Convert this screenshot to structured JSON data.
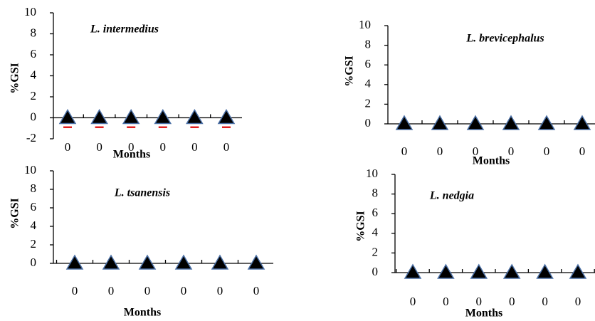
{
  "chart_data": [
    {
      "type": "line",
      "title": "L. intermedius",
      "ylabel": "%GSI",
      "xlabel": "Months",
      "categories": [
        "0",
        "0",
        "0",
        "0",
        "0",
        "0"
      ],
      "series": [
        {
          "color": "#000000",
          "values": [
            0,
            0,
            0,
            0,
            0,
            0
          ],
          "errors": [
            0.9,
            0.9,
            0.9,
            0.9,
            0.9,
            0.9
          ],
          "error_color": "#e02020"
        }
      ],
      "ylim": [
        -2,
        10
      ],
      "yticks": [
        -2,
        0,
        2,
        4,
        6,
        8,
        10
      ]
    },
    {
      "type": "line",
      "title": "L. brevicephalus",
      "ylabel": "%GSI",
      "xlabel": "Months",
      "categories": [
        "0",
        "0",
        "0",
        "0",
        "0",
        "0"
      ],
      "series": [
        {
          "color": "#000000",
          "values": [
            0,
            0,
            0,
            0,
            0,
            0
          ]
        }
      ],
      "ylim": [
        0,
        10
      ],
      "yticks": [
        0,
        2,
        4,
        6,
        8,
        10
      ]
    },
    {
      "type": "line",
      "title": "L. tsanensis",
      "ylabel": "%GSI",
      "xlabel": "Months",
      "categories": [
        "0",
        "0",
        "0",
        "0",
        "0",
        "0"
      ],
      "series": [
        {
          "color": "#000000",
          "values": [
            0,
            0,
            0,
            0,
            0,
            0
          ]
        }
      ],
      "ylim": [
        0,
        10
      ],
      "yticks": [
        0,
        2,
        4,
        6,
        8,
        10
      ]
    },
    {
      "type": "line",
      "title": "L. nedgia",
      "ylabel": "%GSI",
      "xlabel": "Months",
      "categories": [
        "0",
        "0",
        "0",
        "0",
        "0",
        "0"
      ],
      "series": [
        {
          "color": "#000000",
          "values": [
            0,
            0,
            0,
            0,
            0,
            0
          ]
        }
      ],
      "ylim": [
        0,
        10
      ],
      "yticks": [
        0,
        2,
        4,
        6,
        8,
        10
      ]
    }
  ]
}
